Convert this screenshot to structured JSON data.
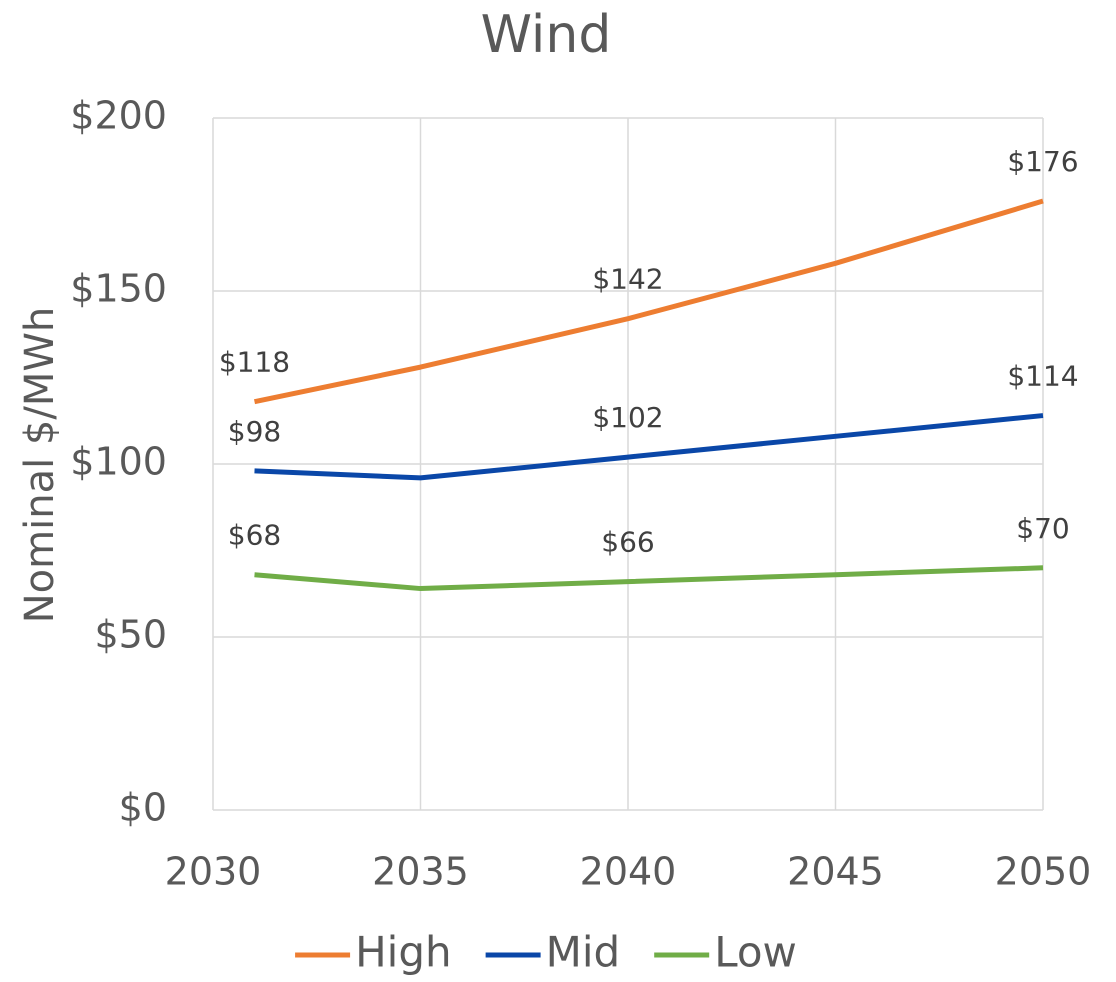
{
  "chart_data": {
    "type": "line",
    "title": "Wind",
    "y_label": "Nominal $/MWh",
    "x": [
      2031,
      2035,
      2040,
      2045,
      2050
    ],
    "series": [
      {
        "name": "High",
        "color": "#ED7D31",
        "values": [
          118,
          128,
          142,
          158,
          176
        ],
        "value_labels": [
          "$118",
          null,
          "$142",
          null,
          "$176"
        ]
      },
      {
        "name": "Mid",
        "color": "#0A47A8",
        "values": [
          98,
          96,
          102,
          108,
          114
        ],
        "value_labels": [
          "$98",
          null,
          "$102",
          null,
          "$114"
        ]
      },
      {
        "name": "Low",
        "color": "#70AD47",
        "values": [
          68,
          64,
          66,
          68,
          70
        ],
        "value_labels": [
          "$68",
          null,
          "$66",
          null,
          "$70"
        ]
      }
    ],
    "xlim": [
      2030,
      2050
    ],
    "xticks": [
      2030,
      2035,
      2040,
      2045,
      2050
    ],
    "ylim": [
      0,
      200
    ],
    "yticks": [
      {
        "value": 0,
        "label": "$0"
      },
      {
        "value": 50,
        "label": "$50"
      },
      {
        "value": 100,
        "label": "$100"
      },
      {
        "value": 150,
        "label": "$150"
      },
      {
        "value": 200,
        "label": "$200"
      }
    ],
    "grid": true,
    "legend": "bottom"
  }
}
